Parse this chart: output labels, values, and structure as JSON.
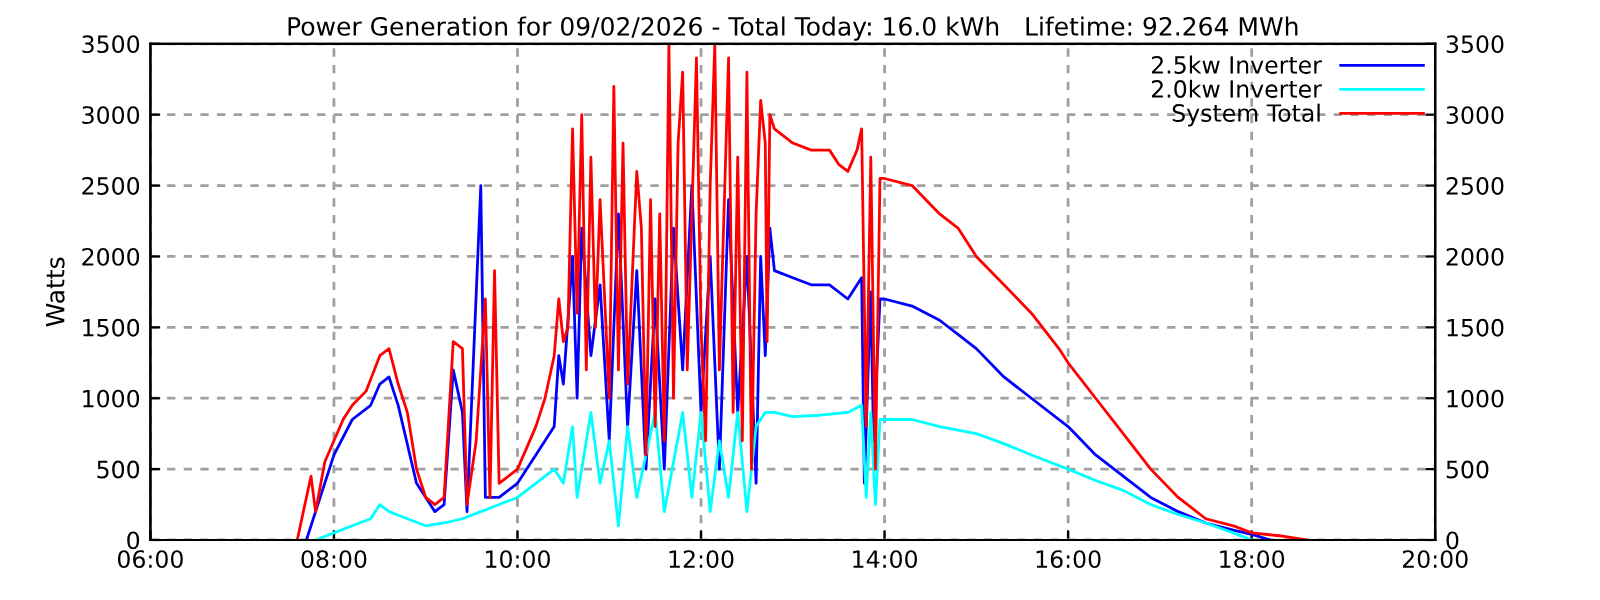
{
  "chart_data": {
    "type": "line",
    "title": "Power Generation for 09/02/2026 - Total Today: 16.0 kWh   Lifetime: 92.264 MWh",
    "ylabel": "Watts",
    "xlim": [
      6,
      20
    ],
    "xticks": [
      {
        "value": 6,
        "label": "06:00"
      },
      {
        "value": 8,
        "label": "08:00"
      },
      {
        "value": 10,
        "label": "10:00"
      },
      {
        "value": 12,
        "label": "12:00"
      },
      {
        "value": 14,
        "label": "14:00"
      },
      {
        "value": 16,
        "label": "16:00"
      },
      {
        "value": 18,
        "label": "18:00"
      },
      {
        "value": 20,
        "label": "20:00"
      }
    ],
    "ylim": [
      0,
      3500
    ],
    "yticks": [
      0,
      500,
      1000,
      1500,
      2000,
      2500,
      3000,
      3500
    ],
    "y2lim": [
      0,
      3500
    ],
    "y2ticks": [
      0,
      500,
      1000,
      1500,
      2000,
      2500,
      3000,
      3500
    ],
    "grid": true,
    "legend": "top right",
    "line_style": "solid",
    "marker": "none",
    "series": [
      {
        "name": "2.5kw Inverter",
        "color": "#0000ff",
        "x": [
          7.7,
          8.0,
          8.2,
          8.4,
          8.5,
          8.6,
          8.7,
          8.9,
          9.1,
          9.2,
          9.3,
          9.4,
          9.45,
          9.6,
          9.65,
          9.8,
          10.0,
          10.2,
          10.4,
          10.45,
          10.5,
          10.6,
          10.65,
          10.7,
          10.8,
          10.9,
          11.0,
          11.1,
          11.2,
          11.3,
          11.4,
          11.5,
          11.6,
          11.7,
          11.8,
          11.9,
          12.0,
          12.1,
          12.2,
          12.3,
          12.4,
          12.5,
          12.6,
          12.65,
          12.7,
          12.75,
          12.8,
          13.0,
          13.2,
          13.4,
          13.6,
          13.75,
          13.78,
          13.85,
          13.88,
          13.95,
          14.0,
          14.3,
          14.6,
          14.8,
          15.0,
          15.3,
          15.6,
          16.0,
          16.3,
          16.6,
          16.9,
          17.2,
          17.5,
          17.8,
          18.0,
          18.2
        ],
        "values": [
          0,
          600,
          850,
          950,
          1100,
          1150,
          950,
          400,
          200,
          250,
          1200,
          900,
          200,
          2500,
          300,
          300,
          400,
          600,
          800,
          1300,
          1100,
          2000,
          1000,
          2200,
          1300,
          1800,
          700,
          2300,
          800,
          1900,
          500,
          1700,
          500,
          2200,
          1200,
          2500,
          900,
          2000,
          500,
          2400,
          900,
          2000,
          400,
          2000,
          1300,
          2200,
          1900,
          1850,
          1800,
          1800,
          1700,
          1850,
          400,
          1750,
          700,
          1700,
          1700,
          1650,
          1550,
          1450,
          1350,
          1150,
          1000,
          800,
          600,
          450,
          300,
          200,
          120,
          70,
          40,
          0
        ]
      },
      {
        "name": "2.0kw Inverter",
        "color": "#00ffff",
        "x": [
          7.8,
          8.0,
          8.2,
          8.4,
          8.5,
          8.6,
          8.8,
          9.0,
          9.2,
          9.4,
          9.6,
          9.8,
          10.0,
          10.2,
          10.4,
          10.5,
          10.6,
          10.65,
          10.8,
          10.9,
          11.0,
          11.1,
          11.2,
          11.3,
          11.5,
          11.6,
          11.8,
          11.9,
          12.0,
          12.1,
          12.2,
          12.3,
          12.4,
          12.5,
          12.6,
          12.7,
          12.8,
          13.0,
          13.3,
          13.6,
          13.75,
          13.8,
          13.85,
          13.9,
          13.95,
          14.3,
          14.6,
          15.0,
          15.3,
          15.6,
          16.0,
          16.3,
          16.6,
          16.9,
          17.2,
          17.5,
          17.8,
          18.0
        ],
        "values": [
          0,
          50,
          100,
          150,
          250,
          200,
          150,
          100,
          120,
          150,
          200,
          250,
          300,
          400,
          500,
          400,
          800,
          300,
          900,
          400,
          700,
          100,
          800,
          300,
          900,
          200,
          900,
          300,
          900,
          200,
          700,
          300,
          900,
          200,
          800,
          900,
          900,
          870,
          880,
          900,
          950,
          300,
          900,
          250,
          850,
          850,
          800,
          750,
          680,
          600,
          500,
          420,
          350,
          250,
          180,
          120,
          50,
          0
        ]
      },
      {
        "name": "System Total",
        "color": "#ff0000",
        "x": [
          7.6,
          7.75,
          7.8,
          7.9,
          8.0,
          8.1,
          8.2,
          8.35,
          8.5,
          8.6,
          8.7,
          8.8,
          8.9,
          9.0,
          9.1,
          9.2,
          9.3,
          9.4,
          9.45,
          9.55,
          9.6,
          9.65,
          9.7,
          9.75,
          9.8,
          10.0,
          10.2,
          10.3,
          10.4,
          10.45,
          10.5,
          10.55,
          10.6,
          10.65,
          10.7,
          10.75,
          10.8,
          10.85,
          10.9,
          11.0,
          11.05,
          11.1,
          11.15,
          11.2,
          11.3,
          11.35,
          11.4,
          11.45,
          11.5,
          11.55,
          11.6,
          11.65,
          11.7,
          11.75,
          11.8,
          11.85,
          11.9,
          11.95,
          12.0,
          12.05,
          12.1,
          12.15,
          12.2,
          12.3,
          12.35,
          12.4,
          12.45,
          12.5,
          12.55,
          12.6,
          12.65,
          12.7,
          12.72,
          12.75,
          12.8,
          13.0,
          13.2,
          13.4,
          13.5,
          13.6,
          13.7,
          13.75,
          13.8,
          13.85,
          13.9,
          13.95,
          14.0,
          14.3,
          14.6,
          14.8,
          15.0,
          15.3,
          15.6,
          15.9,
          16.0,
          16.3,
          16.6,
          16.9,
          17.2,
          17.5,
          17.8,
          18.0,
          18.3,
          18.6
        ],
        "values": [
          0,
          450,
          200,
          550,
          700,
          850,
          950,
          1050,
          1300,
          1350,
          1100,
          900,
          500,
          300,
          250,
          300,
          1400,
          1350,
          250,
          700,
          1200,
          1700,
          300,
          1900,
          400,
          500,
          800,
          1000,
          1300,
          1700,
          1400,
          1500,
          2900,
          1600,
          3000,
          1200,
          2700,
          1500,
          2400,
          1000,
          3200,
          1200,
          2800,
          1100,
          2600,
          2200,
          600,
          2400,
          800,
          2300,
          700,
          3500,
          1000,
          2800,
          3300,
          1200,
          2300,
          3400,
          1500,
          700,
          2500,
          3500,
          1200,
          3400,
          900,
          2700,
          700,
          3300,
          500,
          2300,
          3100,
          2800,
          1400,
          3000,
          2900,
          2800,
          2750,
          2750,
          2650,
          2600,
          2750,
          2900,
          800,
          2700,
          500,
          2550,
          2550,
          2500,
          2300,
          2200,
          2000,
          1800,
          1600,
          1350,
          1250,
          1000,
          750,
          500,
          300,
          150,
          100,
          50,
          30,
          0
        ]
      }
    ]
  }
}
